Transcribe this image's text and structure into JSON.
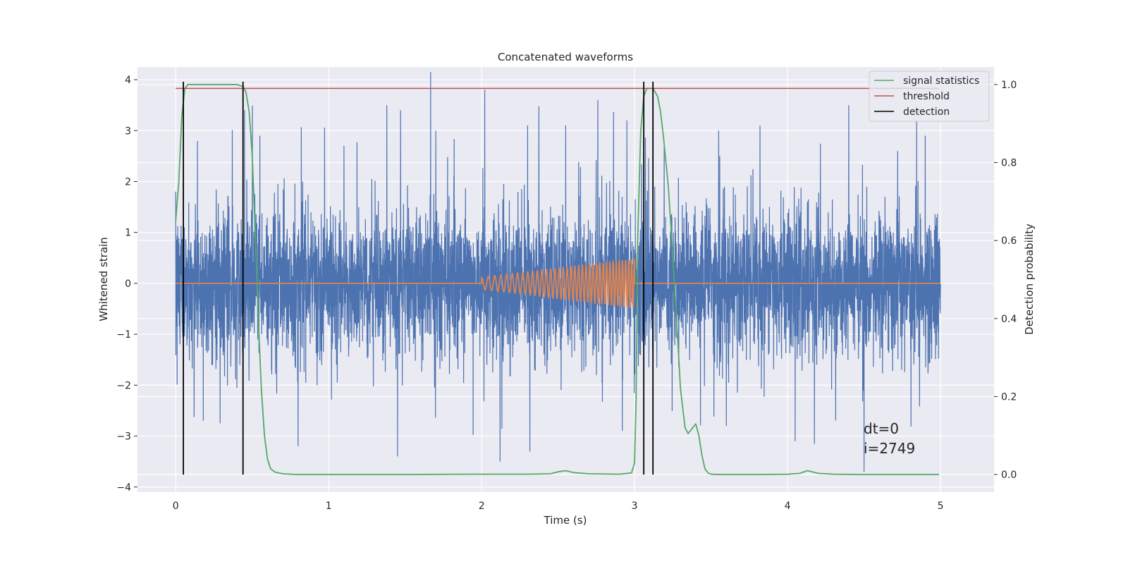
{
  "chart_data": {
    "type": "line",
    "title": "Concatenated waveforms",
    "xlabel": "Time (s)",
    "ylabel": "Whitened strain",
    "ylabel_right": "Detection probability",
    "xlim": [
      -0.25,
      5.35
    ],
    "ylim": [
      -4.1,
      4.25
    ],
    "ylim_right": [
      -0.045,
      1.045
    ],
    "x_ticks": [
      0,
      1,
      2,
      3,
      4,
      5
    ],
    "x_tick_labels": [
      "0",
      "1",
      "2",
      "3",
      "4",
      "5"
    ],
    "y_ticks": [
      -4,
      -3,
      -2,
      -1,
      0,
      1,
      2,
      3,
      4
    ],
    "y_tick_labels": [
      "−4",
      "−3",
      "−2",
      "−1",
      "0",
      "1",
      "2",
      "3",
      "4"
    ],
    "y_ticks_right": [
      0.0,
      0.2,
      0.4,
      0.6,
      0.8,
      1.0
    ],
    "y_tick_labels_right": [
      "0.0",
      "0.2",
      "0.4",
      "0.6",
      "0.8",
      "1.0"
    ],
    "grid": true,
    "legend_position": "top-right",
    "colors": {
      "noise": "#4c72b0",
      "injection": "#dd8452",
      "signal_statistics": "#55a868",
      "threshold": "#c44e52",
      "detection": "#000000",
      "plot_background": "#eaeaf2",
      "grid": "#ffffff"
    },
    "series": [
      {
        "name": "signal statistics",
        "axis": "right",
        "x": [
          0.0,
          0.02,
          0.04,
          0.06,
          0.08,
          0.1,
          0.15,
          0.2,
          0.3,
          0.4,
          0.44,
          0.46,
          0.48,
          0.5,
          0.52,
          0.54,
          0.56,
          0.58,
          0.6,
          0.62,
          0.65,
          0.7,
          0.8,
          1.0,
          1.5,
          1.9,
          2.0,
          2.3,
          2.45,
          2.5,
          2.55,
          2.6,
          2.7,
          2.9,
          2.98,
          3.0,
          3.01,
          3.02,
          3.04,
          3.06,
          3.08,
          3.1,
          3.12,
          3.15,
          3.17,
          3.19,
          3.22,
          3.25,
          3.28,
          3.3,
          3.33,
          3.35,
          3.38,
          3.4,
          3.42,
          3.44,
          3.46,
          3.48,
          3.5,
          3.55,
          3.6,
          3.8,
          4.0,
          4.08,
          4.13,
          4.2,
          4.3,
          4.5,
          4.8,
          4.99
        ],
        "y": [
          0.65,
          0.75,
          0.92,
          0.99,
          1.0,
          1.0,
          1.0,
          1.0,
          1.0,
          1.0,
          0.995,
          0.98,
          0.93,
          0.82,
          0.62,
          0.4,
          0.22,
          0.1,
          0.04,
          0.015,
          0.006,
          0.002,
          0.0,
          0.0,
          0.0,
          0.001,
          0.001,
          0.001,
          0.002,
          0.007,
          0.01,
          0.005,
          0.002,
          0.001,
          0.004,
          0.03,
          0.2,
          0.6,
          0.88,
          0.97,
          0.99,
          0.99,
          0.99,
          0.97,
          0.93,
          0.86,
          0.74,
          0.56,
          0.36,
          0.22,
          0.12,
          0.105,
          0.12,
          0.13,
          0.1,
          0.05,
          0.015,
          0.004,
          0.001,
          0.0,
          0.0,
          0.0,
          0.001,
          0.003,
          0.01,
          0.003,
          0.001,
          0.0,
          0.0,
          0.0
        ]
      },
      {
        "name": "threshold",
        "axis": "right",
        "x": [
          0.0,
          4.99
        ],
        "y": [
          0.99,
          0.99
        ]
      },
      {
        "name": "detection",
        "axis": "right",
        "x_events": [
          0.05,
          0.44,
          3.06,
          3.12
        ],
        "y_range": [
          0.0,
          1.0
        ]
      },
      {
        "name": "",
        "axis": "left",
        "kind": "noise",
        "x_range": [
          0.0,
          5.0
        ],
        "band_sigma": 0.65,
        "peaks": [
          {
            "x": 0.05,
            "y": 2.4
          },
          {
            "x": 0.45,
            "y": 3.4
          },
          {
            "x": 0.55,
            "y": 2.9
          },
          {
            "x": 1.1,
            "y": 2.7
          },
          {
            "x": 1.38,
            "y": 3.5
          },
          {
            "x": 1.47,
            "y": 3.4
          },
          {
            "x": 1.7,
            "y": 3.0
          },
          {
            "x": 2.02,
            "y": 3.8
          },
          {
            "x": 2.3,
            "y": 3.1
          },
          {
            "x": 2.55,
            "y": 3.1
          },
          {
            "x": 2.76,
            "y": 3.6
          },
          {
            "x": 2.95,
            "y": 3.2
          },
          {
            "x": 3.55,
            "y": 3.0
          },
          {
            "x": 3.82,
            "y": 3.1
          },
          {
            "x": 4.4,
            "y": 3.5
          },
          {
            "x": 4.9,
            "y": 2.9
          },
          {
            "x": 1.45,
            "y": -3.4
          },
          {
            "x": 2.12,
            "y": -3.5
          },
          {
            "x": 0.8,
            "y": -3.2
          },
          {
            "x": 4.5,
            "y": -3.7
          },
          {
            "x": 4.05,
            "y": -3.1
          },
          {
            "x": 0.18,
            "y": -2.7
          },
          {
            "x": 2.92,
            "y": -2.9
          },
          {
            "x": 3.6,
            "y": -2.8
          }
        ]
      },
      {
        "name": "",
        "axis": "left",
        "kind": "injection",
        "x": [
          0.0,
          2.0,
          2.0,
          3.0,
          3.0,
          5.0
        ],
        "y": [
          0.0,
          0.0,
          0.12,
          0.5,
          0.0,
          0.0
        ],
        "chirp_start_freq": 22,
        "chirp_end_freq": 52,
        "amp_start": 0.12,
        "amp_end": 0.48
      }
    ],
    "legend": [
      "signal statistics",
      "threshold",
      "detection"
    ],
    "annotations": [
      "dt=0",
      "i=2749"
    ]
  }
}
